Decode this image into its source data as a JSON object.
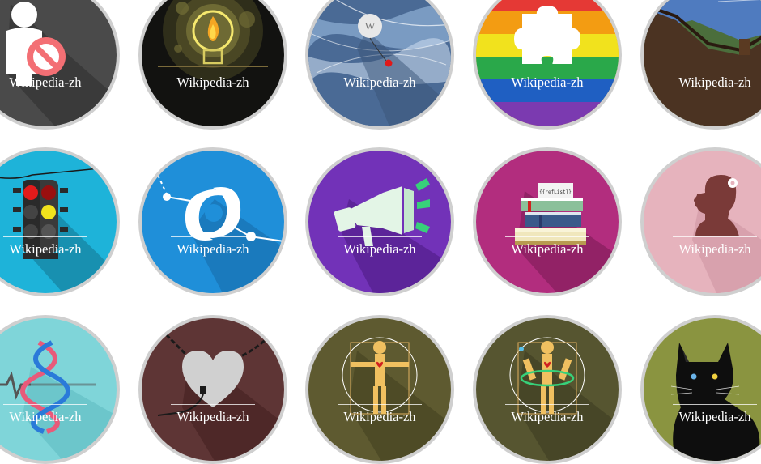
{
  "badges": [
    {
      "label": "Wikipedia-zh",
      "icon": "person-prohibited-icon",
      "color": "#4a4a4a"
    },
    {
      "label": "Wikipedia-zh",
      "icon": "lightbulb-icon",
      "color": "#1a1a14"
    },
    {
      "label": "Wikipedia-zh",
      "icon": "wikipedia-balloon-icon",
      "color": "#5b7fa9"
    },
    {
      "label": "Wikipedia-zh",
      "icon": "puzzle-piece-icon",
      "color": "#e6a020"
    },
    {
      "label": "Wikipedia-zh",
      "icon": "great-wall-icon",
      "color": "#6e4a2a"
    },
    {
      "label": "Wikipedia-zh",
      "icon": "traffic-light-icon",
      "color": "#1eb3d9"
    },
    {
      "label": "Wikipedia-zh",
      "icon": "hurricane-icon",
      "color": "#1f8fd9"
    },
    {
      "label": "Wikipedia-zh",
      "icon": "megaphone-icon",
      "color": "#7232b8"
    },
    {
      "label": "Wikipedia-zh",
      "icon": "book-stack-icon",
      "color": "#b22d7e"
    },
    {
      "label": "Wikipedia-zh",
      "icon": "woman-silhouette-icon",
      "color": "#e6b3bd"
    },
    {
      "label": "Wikipedia-zh",
      "icon": "dna-helix-icon",
      "color": "#7fd5d9"
    },
    {
      "label": "Wikipedia-zh",
      "icon": "chained-heart-icon",
      "color": "#5e3535"
    },
    {
      "label": "Wikipedia-zh",
      "icon": "vitruvian-man-icon",
      "color": "#5e5a30"
    },
    {
      "label": "Wikipedia-zh",
      "icon": "vitruvian-hoop-icon",
      "color": "#565530"
    },
    {
      "label": "Wikipedia-zh",
      "icon": "black-cat-icon",
      "color": "#8a9440"
    }
  ]
}
